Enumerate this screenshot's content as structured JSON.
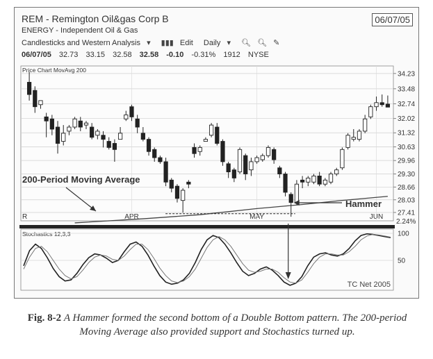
{
  "header": {
    "ticker_title": "REM - Remington Oil&gas Corp B",
    "date_box": "06/07/05",
    "sector": "ENERGY - Independent Oil & Gas",
    "chart_style": "Candlesticks and Western Analysis",
    "edit_label": "Edit",
    "period_label": "Daily"
  },
  "quote": {
    "date": "06/07/05",
    "open": "32.73",
    "high": "33.15",
    "low": "32.58",
    "close": "32.58",
    "change": "-0.10",
    "change_pct": "-0.31%",
    "volume": "1912",
    "exchange": "NYSE"
  },
  "caption": {
    "figure_label": "Fig. 8-2",
    "text": "A Hammer formed the second bottom of a Double Bottom pattern. The 200-period Moving Average also provided support and Stochastics turned up."
  },
  "chart_data": [
    {
      "type": "candlestick",
      "title": "Price Chart  MovAvg 200",
      "y_ticks": [
        "34.23",
        "33.48",
        "32.74",
        "32.02",
        "31.32",
        "30.63",
        "29.96",
        "29.30",
        "28.66",
        "28.03",
        "27.41"
      ],
      "ylim": [
        27.0,
        34.6
      ],
      "x_labels": [
        "R",
        "APR",
        "MAY",
        "JUN"
      ],
      "x_label_index": [
        0,
        18,
        40,
        61
      ],
      "right_axis_extra": [
        "2.24%"
      ],
      "annotations": {
        "moving_average_label": "200-Period Moving Average",
        "hammer_label": "Hammer"
      },
      "moving_average": {
        "name": "MovAvg 200",
        "index": [
          8,
          20,
          30,
          40,
          48,
          55,
          63
        ],
        "values": [
          26.9,
          27.1,
          27.3,
          27.6,
          27.8,
          28.0,
          28.2
        ]
      },
      "candles": [
        {
          "o": 33.8,
          "h": 34.3,
          "c": 33.2,
          "l": 32.9
        },
        {
          "o": 33.4,
          "h": 33.6,
          "c": 32.6,
          "l": 32.3
        },
        {
          "o": 32.7,
          "h": 32.9,
          "c": 32.9,
          "l": 32.5
        },
        {
          "o": 32.1,
          "h": 32.3,
          "c": 31.9,
          "l": 31.1
        },
        {
          "o": 32.0,
          "h": 32.2,
          "c": 31.5,
          "l": 31.2
        },
        {
          "o": 31.6,
          "h": 31.9,
          "c": 30.8,
          "l": 30.3
        },
        {
          "o": 30.9,
          "h": 31.7,
          "c": 31.3,
          "l": 30.7
        },
        {
          "o": 31.4,
          "h": 31.7,
          "c": 31.6,
          "l": 31.2
        },
        {
          "o": 31.6,
          "h": 32.1,
          "c": 32.0,
          "l": 31.5
        },
        {
          "o": 31.9,
          "h": 32.1,
          "c": 31.6,
          "l": 31.4
        },
        {
          "o": 31.7,
          "h": 31.9,
          "c": 31.8,
          "l": 31.5
        },
        {
          "o": 31.6,
          "h": 31.8,
          "c": 31.1,
          "l": 31.0
        },
        {
          "o": 31.2,
          "h": 31.5,
          "c": 31.4,
          "l": 31.0
        },
        {
          "o": 31.2,
          "h": 31.4,
          "c": 31.0,
          "l": 30.6
        },
        {
          "o": 30.9,
          "h": 31.1,
          "c": 30.6,
          "l": 30.5
        },
        {
          "o": 30.8,
          "h": 31.0,
          "c": 30.5,
          "l": 29.9
        },
        {
          "o": 31.0,
          "h": 31.6,
          "c": 31.3,
          "l": 31.0
        },
        {
          "o": 32.0,
          "h": 32.4,
          "c": 32.2,
          "l": 31.9
        },
        {
          "o": 32.6,
          "h": 32.7,
          "c": 32.1,
          "l": 31.9
        },
        {
          "o": 32.0,
          "h": 32.2,
          "c": 31.6,
          "l": 31.3
        },
        {
          "o": 31.3,
          "h": 31.6,
          "c": 31.0,
          "l": 30.9
        },
        {
          "o": 31.0,
          "h": 31.1,
          "c": 30.4,
          "l": 30.2
        },
        {
          "o": 30.5,
          "h": 30.6,
          "c": 30.1,
          "l": 29.9
        },
        {
          "o": 30.1,
          "h": 30.2,
          "c": 29.9,
          "l": 29.8
        },
        {
          "o": 29.9,
          "h": 30.1,
          "c": 28.9,
          "l": 28.7
        },
        {
          "o": 29.0,
          "h": 29.1,
          "c": 28.6,
          "l": 28.4
        },
        {
          "o": 28.7,
          "h": 28.8,
          "c": 28.1,
          "l": 27.9
        },
        {
          "o": 28.0,
          "h": 28.6,
          "c": 28.5,
          "l": 27.4
        },
        {
          "o": 28.9,
          "h": 29.0,
          "c": 28.8,
          "l": 28.6
        },
        {
          "o": 30.6,
          "h": 30.8,
          "c": 30.3,
          "l": 30.1
        },
        {
          "o": 30.4,
          "h": 30.7,
          "c": 30.6,
          "l": 30.2
        },
        {
          "o": 30.9,
          "h": 31.1,
          "c": 31.0,
          "l": 30.9
        },
        {
          "o": 31.2,
          "h": 31.8,
          "c": 31.7,
          "l": 31.1
        },
        {
          "o": 31.6,
          "h": 31.8,
          "c": 30.8,
          "l": 30.7
        },
        {
          "o": 30.9,
          "h": 31.0,
          "c": 29.9,
          "l": 29.7
        },
        {
          "o": 29.8,
          "h": 29.9,
          "c": 29.4,
          "l": 29.1
        },
        {
          "o": 29.5,
          "h": 29.6,
          "c": 29.1,
          "l": 28.9
        },
        {
          "o": 29.4,
          "h": 30.6,
          "c": 30.5,
          "l": 29.3
        },
        {
          "o": 30.2,
          "h": 30.3,
          "c": 29.3,
          "l": 29.0
        },
        {
          "o": 29.5,
          "h": 30.1,
          "c": 29.9,
          "l": 29.2
        },
        {
          "o": 29.9,
          "h": 30.2,
          "c": 30.1,
          "l": 29.8
        },
        {
          "o": 30.0,
          "h": 30.3,
          "c": 30.2,
          "l": 29.9
        },
        {
          "o": 30.2,
          "h": 30.7,
          "c": 30.6,
          "l": 30.1
        },
        {
          "o": 30.5,
          "h": 30.6,
          "c": 30.0,
          "l": 29.8
        },
        {
          "o": 29.6,
          "h": 29.7,
          "c": 29.3,
          "l": 29.1
        },
        {
          "o": 29.3,
          "h": 29.4,
          "c": 28.4,
          "l": 28.2
        },
        {
          "o": 28.3,
          "h": 28.4,
          "c": 27.9,
          "l": 27.2
        },
        {
          "o": 27.9,
          "h": 29.0,
          "c": 28.8,
          "l": 27.8
        },
        {
          "o": 29.0,
          "h": 29.2,
          "c": 28.9,
          "l": 28.6
        },
        {
          "o": 28.9,
          "h": 29.2,
          "c": 29.1,
          "l": 28.7
        },
        {
          "o": 28.9,
          "h": 29.3,
          "c": 29.2,
          "l": 28.8
        },
        {
          "o": 29.2,
          "h": 29.4,
          "c": 28.8,
          "l": 28.7
        },
        {
          "o": 28.8,
          "h": 29.1,
          "c": 29.0,
          "l": 28.7
        },
        {
          "o": 28.9,
          "h": 29.4,
          "c": 29.3,
          "l": 28.8
        },
        {
          "o": 29.3,
          "h": 29.6,
          "c": 29.5,
          "l": 29.2
        },
        {
          "o": 29.6,
          "h": 30.6,
          "c": 30.5,
          "l": 29.5
        },
        {
          "o": 30.6,
          "h": 31.3,
          "c": 31.2,
          "l": 30.5
        },
        {
          "o": 31.0,
          "h": 31.5,
          "c": 31.1,
          "l": 30.9
        },
        {
          "o": 31.0,
          "h": 31.5,
          "c": 31.4,
          "l": 30.9
        },
        {
          "o": 31.4,
          "h": 32.2,
          "c": 32.0,
          "l": 31.3
        },
        {
          "o": 32.1,
          "h": 32.7,
          "c": 32.6,
          "l": 32.0
        },
        {
          "o": 32.6,
          "h": 33.1,
          "c": 32.8,
          "l": 32.4
        },
        {
          "o": 32.8,
          "h": 33.2,
          "c": 32.7,
          "l": 32.6
        },
        {
          "o": 32.73,
          "h": 33.15,
          "c": 32.58,
          "l": 32.58
        }
      ]
    },
    {
      "type": "line",
      "title": "Stochastics 12,3,3",
      "ylim": [
        0,
        100
      ],
      "y_ticks": [
        "100",
        "50"
      ],
      "watermark": "TC Net 2005",
      "series": [
        {
          "values": [
            40,
            68,
            80,
            72,
            55,
            35,
            20,
            12,
            14,
            26,
            42,
            55,
            62,
            60,
            54,
            46,
            50,
            66,
            80,
            84,
            76,
            60,
            40,
            22,
            10,
            6,
            8,
            14,
            26,
            46,
            70,
            88,
            96,
            92,
            80,
            64,
            46,
            30,
            22,
            26,
            34,
            38,
            32,
            22,
            10,
            4,
            8,
            20,
            40,
            56,
            62,
            64,
            60,
            58,
            62,
            72,
            86,
            96,
            99,
            98,
            96,
            94,
            92
          ]
        },
        {
          "values": [
            34,
            56,
            72,
            76,
            66,
            50,
            34,
            22,
            16,
            20,
            32,
            46,
            56,
            60,
            58,
            52,
            50,
            58,
            70,
            80,
            80,
            70,
            54,
            36,
            22,
            12,
            9,
            12,
            20,
            34,
            54,
            74,
            88,
            94,
            88,
            76,
            60,
            44,
            32,
            28,
            30,
            34,
            34,
            28,
            18,
            10,
            8,
            14,
            28,
            44,
            56,
            62,
            62,
            60,
            60,
            66,
            76,
            88,
            95,
            98,
            97,
            95,
            93
          ]
        }
      ]
    }
  ]
}
